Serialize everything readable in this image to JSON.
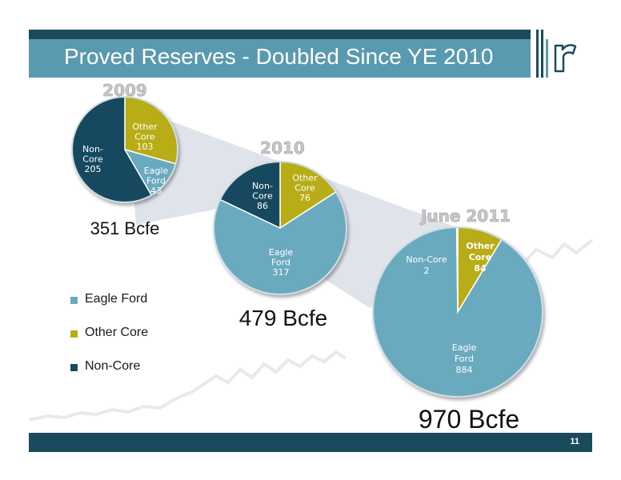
{
  "title": "Proved Reserves - Doubled Since YE 2010",
  "page_number": "11",
  "colors": {
    "eagle_ford": "#6aaabf",
    "other_core": "#b8ad14",
    "non_core": "#174a5e",
    "title_band": "#5a9ab0",
    "title_dark": "#1a4a5c"
  },
  "logo_icon": "r-logo-icon",
  "legend": [
    {
      "label": "Eagle Ford",
      "color": "#6aaabf"
    },
    {
      "label": "Other Core",
      "color": "#b8ad14"
    },
    {
      "label": "Non-Core",
      "color": "#174a5e"
    }
  ],
  "chart_data": [
    {
      "type": "pie",
      "title": "2009",
      "total_label": "351 Bcfe",
      "slices": [
        {
          "name": "Other Core",
          "value": 103,
          "label_lines": [
            "Other",
            "Core",
            "103"
          ]
        },
        {
          "name": "Eagle Ford",
          "value": 43,
          "label_lines": [
            "Eagle",
            "Ford",
            "43"
          ]
        },
        {
          "name": "Non-Core",
          "value": 205,
          "label_lines": [
            "Non-",
            "Core",
            "205"
          ]
        }
      ]
    },
    {
      "type": "pie",
      "title": "2010",
      "total_label": "479 Bcfe",
      "slices": [
        {
          "name": "Other Core",
          "value": 76,
          "label_lines": [
            "Other",
            "Core",
            "76"
          ]
        },
        {
          "name": "Eagle Ford",
          "value": 317,
          "label_lines": [
            "Eagle",
            "Ford",
            "317"
          ]
        },
        {
          "name": "Non-Core",
          "value": 86,
          "label_lines": [
            "Non-",
            "Core",
            "86"
          ]
        }
      ]
    },
    {
      "type": "pie",
      "title": "June 2011",
      "total_label": "970 Bcfe",
      "slices": [
        {
          "name": "Other Core",
          "value": 84,
          "label_lines": [
            "Other",
            "Core",
            "84"
          ]
        },
        {
          "name": "Eagle Ford",
          "value": 884,
          "label_lines": [
            "Eagle",
            "Ford",
            "884"
          ]
        },
        {
          "name": "Non-Core",
          "value": 2,
          "label_lines": [
            "Non-Core",
            "2"
          ]
        }
      ]
    }
  ]
}
